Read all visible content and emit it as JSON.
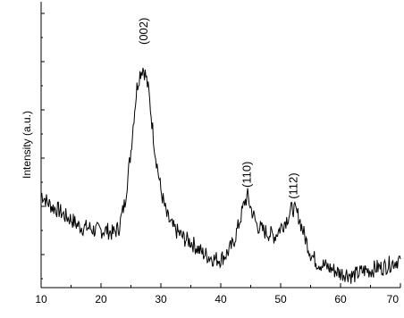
{
  "chart_data": {
    "type": "line",
    "title": "",
    "xlabel": "",
    "ylabel": "Intensity (a.u.)",
    "xlim": [
      10,
      70
    ],
    "ylim": [
      0,
      100
    ],
    "x_ticks": [
      10,
      20,
      30,
      40,
      50,
      60,
      70
    ],
    "y_ticks_shown": false,
    "grid": false,
    "legend": "none",
    "line_color": "#000000",
    "annotations": [
      {
        "text": "(002)",
        "x": 27.2,
        "y": 85
      },
      {
        "text": "(110)",
        "x": 44.4,
        "y": 35
      },
      {
        "text": "(112)",
        "x": 52.2,
        "y": 31
      }
    ],
    "series": [
      {
        "x": [
          10,
          11,
          12,
          13,
          14,
          15,
          16,
          17,
          18,
          19,
          20,
          21,
          22,
          23,
          24,
          25,
          25.5,
          26,
          26.5,
          27,
          27.5,
          28,
          28.5,
          29,
          30,
          31,
          32,
          33,
          34,
          35,
          36,
          37,
          38,
          39,
          40,
          41,
          42,
          43,
          44,
          44.5,
          45,
          46,
          47,
          48,
          49,
          50,
          51,
          52,
          53,
          54,
          55,
          56,
          57,
          58,
          59,
          60,
          61,
          62,
          63,
          64,
          65,
          66,
          67,
          68,
          69,
          70
        ],
        "y": [
          33,
          30,
          28,
          27,
          25,
          24,
          22,
          21,
          21,
          20,
          20,
          20,
          19,
          21,
          30,
          48,
          60,
          70,
          75,
          77,
          74,
          68,
          58,
          48,
          34,
          25,
          21,
          19,
          17,
          16,
          14,
          12,
          11,
          10,
          10,
          12,
          15,
          22,
          30,
          32,
          28,
          22,
          20,
          19,
          18,
          21,
          24,
          28,
          25,
          18,
          12,
          9,
          8,
          7,
          6,
          5,
          5,
          4,
          5,
          6,
          6,
          7,
          7,
          8,
          9,
          10
        ]
      }
    ]
  }
}
